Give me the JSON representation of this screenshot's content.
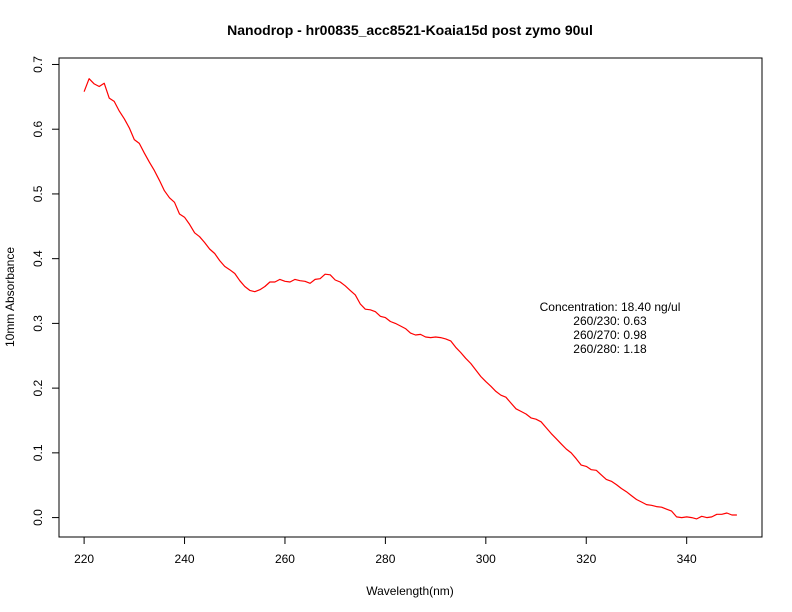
{
  "chart_data": {
    "type": "line",
    "title": "Nanodrop - hr00835_acc8521-Koaia15d post zymo 90ul",
    "xlabel": "Wavelength(nm)",
    "ylabel": "10mm Absorbance",
    "xlim": [
      215,
      355
    ],
    "ylim": [
      -0.03,
      0.71
    ],
    "xticks": [
      220,
      240,
      260,
      280,
      300,
      320,
      340
    ],
    "yticks": [
      0.0,
      0.1,
      0.2,
      0.3,
      0.4,
      0.5,
      0.6,
      0.7
    ],
    "xtick_labels": [
      "220",
      "240",
      "260",
      "280",
      "300",
      "320",
      "340"
    ],
    "ytick_labels": [
      "0.0",
      "0.1",
      "0.2",
      "0.3",
      "0.4",
      "0.5",
      "0.6",
      "0.7"
    ],
    "grid": false,
    "series": [
      {
        "color": "#ff0000",
        "x": [
          220,
          221,
          222,
          223,
          224,
          225,
          226,
          227,
          228,
          229,
          230,
          231,
          232,
          233,
          234,
          235,
          236,
          237,
          238,
          239,
          240,
          241,
          242,
          243,
          244,
          245,
          246,
          247,
          248,
          249,
          250,
          251,
          252,
          253,
          254,
          255,
          256,
          257,
          258,
          259,
          260,
          261,
          262,
          263,
          264,
          265,
          266,
          267,
          268,
          269,
          270,
          271,
          272,
          273,
          274,
          275,
          276,
          277,
          278,
          279,
          280,
          281,
          282,
          283,
          284,
          285,
          286,
          287,
          288,
          289,
          290,
          291,
          292,
          293,
          294,
          295,
          296,
          297,
          298,
          299,
          300,
          301,
          302,
          303,
          304,
          305,
          306,
          307,
          308,
          309,
          310,
          311,
          312,
          313,
          314,
          315,
          316,
          317,
          318,
          319,
          320,
          321,
          322,
          323,
          324,
          325,
          326,
          327,
          328,
          329,
          330,
          331,
          332,
          333,
          334,
          335,
          336,
          337,
          338,
          339,
          340,
          341,
          342,
          343,
          344,
          345,
          346,
          347,
          348,
          349,
          350
        ],
        "values": [
          0.658,
          0.678,
          0.67,
          0.666,
          0.671,
          0.648,
          0.643,
          0.628,
          0.616,
          0.602,
          0.584,
          0.578,
          0.563,
          0.549,
          0.536,
          0.521,
          0.505,
          0.494,
          0.487,
          0.469,
          0.464,
          0.453,
          0.44,
          0.434,
          0.425,
          0.415,
          0.408,
          0.397,
          0.388,
          0.383,
          0.377,
          0.366,
          0.357,
          0.351,
          0.349,
          0.352,
          0.357,
          0.364,
          0.364,
          0.368,
          0.365,
          0.364,
          0.368,
          0.366,
          0.365,
          0.362,
          0.368,
          0.369,
          0.376,
          0.375,
          0.367,
          0.364,
          0.358,
          0.351,
          0.344,
          0.33,
          0.322,
          0.321,
          0.318,
          0.311,
          0.309,
          0.303,
          0.3,
          0.296,
          0.292,
          0.285,
          0.282,
          0.283,
          0.279,
          0.278,
          0.279,
          0.278,
          0.276,
          0.273,
          0.263,
          0.255,
          0.246,
          0.238,
          0.228,
          0.218,
          0.21,
          0.203,
          0.195,
          0.189,
          0.186,
          0.177,
          0.168,
          0.164,
          0.16,
          0.154,
          0.152,
          0.148,
          0.139,
          0.13,
          0.122,
          0.114,
          0.106,
          0.1,
          0.091,
          0.081,
          0.079,
          0.074,
          0.073,
          0.066,
          0.059,
          0.056,
          0.051,
          0.045,
          0.04,
          0.034,
          0.028,
          0.024,
          0.02,
          0.019,
          0.017,
          0.016,
          0.013,
          0.01,
          0.001,
          0.0,
          0.001,
          0.0,
          -0.002,
          0.002,
          0.0,
          0.001,
          0.005,
          0.005,
          0.007,
          0.004,
          0.004
        ]
      }
    ],
    "annotations": [
      "Concentration: 18.40 ng/ul",
      "260/230: 0.63",
      "260/270: 0.98",
      "260/280: 1.18"
    ]
  }
}
